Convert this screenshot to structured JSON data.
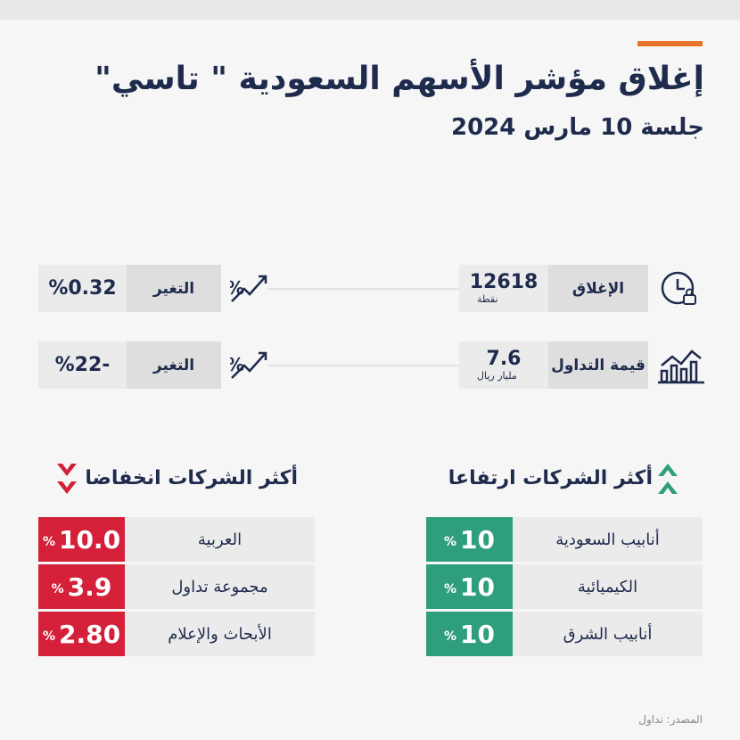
{
  "header": {
    "title": "إغلاق مؤشر الأسهم السعودية \" تاسي\"",
    "subtitle": "جلسة 10 مارس 2024"
  },
  "stats": [
    {
      "label": "الإغلاق",
      "value": "12618",
      "unit": "نقطة",
      "change_label": "التغير",
      "change": "%0.32"
    },
    {
      "label": "قيمة التداول",
      "value": "7.6",
      "unit": "مليار ريال",
      "change_label": "التغير",
      "change": "%22-"
    }
  ],
  "gainers": {
    "title": "أكثر الشركات ارتفاعا",
    "rows": [
      {
        "name": "أنابيب السعودية",
        "value": "10",
        "unit": "%"
      },
      {
        "name": "الكيميائية",
        "value": "10",
        "unit": "%"
      },
      {
        "name": "أنابيب الشرق",
        "value": "10",
        "unit": "%"
      }
    ]
  },
  "losers": {
    "title": "أكثر الشركات انخفاضا",
    "rows": [
      {
        "name": "العربية",
        "value": "10.0",
        "unit": "%"
      },
      {
        "name": "مجموعة تداول",
        "value": "3.9",
        "unit": "%"
      },
      {
        "name": "الأبحاث والإعلام",
        "value": "2.80",
        "unit": "%"
      }
    ]
  },
  "source": "المصدر: تداول"
}
